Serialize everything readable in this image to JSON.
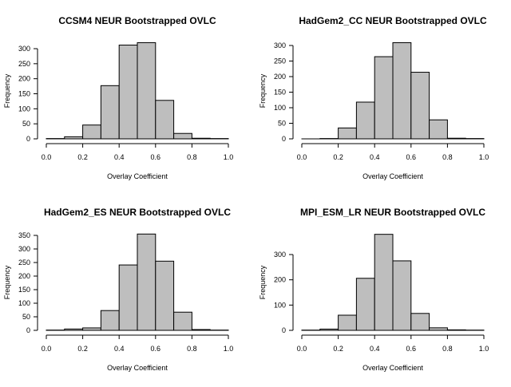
{
  "chart_data": [
    {
      "type": "bar",
      "title": "CCSM4 NEUR Bootstrapped OVLC",
      "xlabel": "Overlay Coefficient",
      "ylabel": "Frequency",
      "bins": [
        0.0,
        0.1,
        0.2,
        0.3,
        0.4,
        0.5,
        0.6,
        0.7,
        0.8,
        0.9,
        1.0
      ],
      "values": [
        1,
        7,
        46,
        177,
        312,
        320,
        128,
        18,
        2,
        1
      ],
      "xticks": [
        "0.0",
        "0.2",
        "0.4",
        "0.6",
        "0.8",
        "1.0"
      ],
      "yticks": [
        "0",
        "50",
        "100",
        "150",
        "200",
        "250",
        "300"
      ],
      "xlim": [
        0,
        1
      ],
      "ylim": [
        0,
        320
      ],
      "grid": false,
      "bar_color": "#bebebe"
    },
    {
      "type": "bar",
      "title": "HadGem2_CC NEUR Bootstrapped OVLC",
      "xlabel": "Overlay Coefficient",
      "ylabel": "Frequency",
      "bins": [
        0.0,
        0.1,
        0.2,
        0.3,
        0.4,
        0.5,
        0.6,
        0.7,
        0.8,
        0.9,
        1.0
      ],
      "values": [
        0,
        1,
        35,
        118,
        264,
        309,
        214,
        61,
        2,
        1
      ],
      "xticks": [
        "0.0",
        "0.2",
        "0.4",
        "0.6",
        "0.8",
        "1.0"
      ],
      "yticks": [
        "0",
        "50",
        "100",
        "150",
        "200",
        "250",
        "300"
      ],
      "xlim": [
        0,
        1
      ],
      "ylim": [
        0,
        309
      ],
      "grid": false,
      "bar_color": "#bebebe"
    },
    {
      "type": "bar",
      "title": "HadGem2_ES NEUR Bootstrapped OVLC",
      "xlabel": "Overlay Coefficient",
      "ylabel": "Frequency",
      "bins": [
        0.0,
        0.1,
        0.2,
        0.3,
        0.4,
        0.5,
        0.6,
        0.7,
        0.8,
        0.9,
        1.0
      ],
      "values": [
        1,
        5,
        9,
        73,
        241,
        355,
        255,
        67,
        3,
        1
      ],
      "xticks": [
        "0.0",
        "0.2",
        "0.4",
        "0.6",
        "0.8",
        "1.0"
      ],
      "yticks": [
        "0",
        "50",
        "100",
        "150",
        "200",
        "250",
        "300",
        "350"
      ],
      "xlim": [
        0,
        1
      ],
      "ylim": [
        0,
        355
      ],
      "grid": false,
      "bar_color": "#bebebe"
    },
    {
      "type": "bar",
      "title": "MPI_ESM_LR NEUR Bootstrapped OVLC",
      "xlabel": "Overlay Coefficient",
      "ylabel": "Frequency",
      "bins": [
        0.0,
        0.1,
        0.2,
        0.3,
        0.4,
        0.5,
        0.6,
        0.7,
        0.8,
        0.9,
        1.0
      ],
      "values": [
        1,
        5,
        60,
        206,
        380,
        275,
        67,
        10,
        2,
        1
      ],
      "xticks": [
        "0.0",
        "0.2",
        "0.4",
        "0.6",
        "0.8",
        "1.0"
      ],
      "yticks": [
        "0",
        "100",
        "200",
        "300"
      ],
      "xlim": [
        0,
        1
      ],
      "ylim": [
        0,
        380
      ],
      "grid": false,
      "bar_color": "#bebebe"
    }
  ]
}
